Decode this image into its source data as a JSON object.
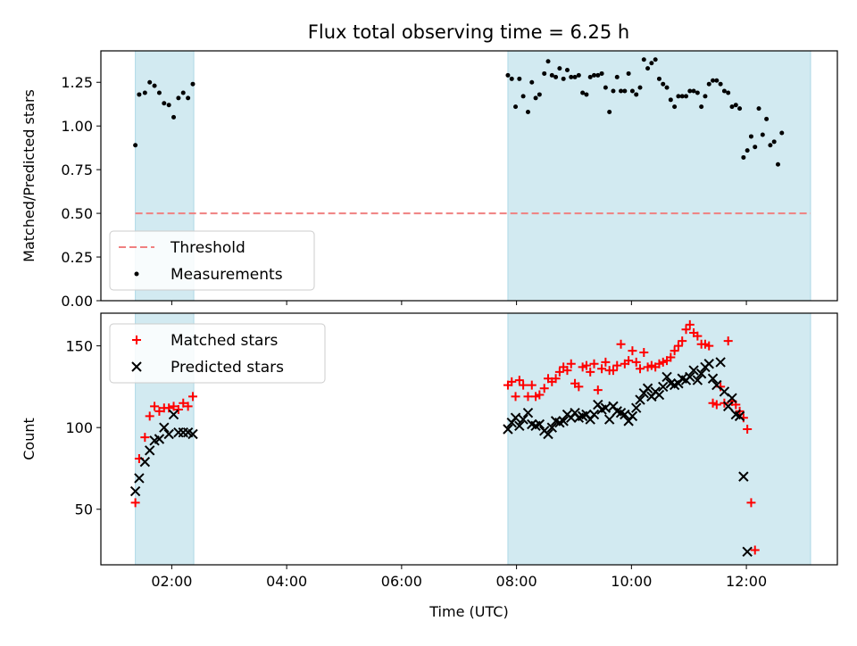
{
  "title": "Flux total observing time = 6.25 h",
  "colors": {
    "shade": "#add8e6",
    "threshold": "#f08080",
    "matched": "#ff0000",
    "predicted": "#000000",
    "measurements": "#000000"
  },
  "chart_data": [
    {
      "type": "scatter",
      "panel": "top",
      "title": "Flux total observing time = 6.25 h",
      "xlabel": "",
      "ylabel": "Matched/Predicted stars",
      "xlim": [
        "00:46",
        "13:35"
      ],
      "ylim": [
        0,
        1.43
      ],
      "yticks": [
        "0.00",
        "0.25",
        "0.50",
        "0.75",
        "1.00",
        "1.25"
      ],
      "legend": {
        "position": "lower-left",
        "entries": [
          "Threshold",
          "Measurements"
        ]
      },
      "shaded_intervals": [
        [
          "01:22",
          "02:23"
        ],
        [
          "07:51",
          "13:07"
        ]
      ],
      "threshold": {
        "name": "Threshold",
        "value": 0.5,
        "x": [
          "01:22",
          "13:07"
        ],
        "style": "dashed"
      },
      "series": [
        {
          "name": "Measurements",
          "points": [
            [
              "01:22",
              0.89
            ],
            [
              "01:26",
              1.18
            ],
            [
              "01:32",
              1.19
            ],
            [
              "01:37",
              1.25
            ],
            [
              "01:42",
              1.23
            ],
            [
              "01:47",
              1.19
            ],
            [
              "01:52",
              1.13
            ],
            [
              "01:57",
              1.12
            ],
            [
              "02:02",
              1.05
            ],
            [
              "02:07",
              1.16
            ],
            [
              "02:12",
              1.19
            ],
            [
              "02:17",
              1.16
            ],
            [
              "02:22",
              1.24
            ],
            [
              "07:51",
              1.29
            ],
            [
              "07:55",
              1.27
            ],
            [
              "07:59",
              1.11
            ],
            [
              "08:03",
              1.27
            ],
            [
              "08:07",
              1.17
            ],
            [
              "08:12",
              1.08
            ],
            [
              "08:16",
              1.25
            ],
            [
              "08:20",
              1.16
            ],
            [
              "08:24",
              1.18
            ],
            [
              "08:29",
              1.3
            ],
            [
              "08:33",
              1.37
            ],
            [
              "08:37",
              1.29
            ],
            [
              "08:41",
              1.28
            ],
            [
              "08:45",
              1.33
            ],
            [
              "08:49",
              1.27
            ],
            [
              "08:53",
              1.32
            ],
            [
              "08:57",
              1.28
            ],
            [
              "09:01",
              1.28
            ],
            [
              "09:05",
              1.29
            ],
            [
              "09:09",
              1.19
            ],
            [
              "09:13",
              1.18
            ],
            [
              "09:17",
              1.28
            ],
            [
              "09:21",
              1.29
            ],
            [
              "09:25",
              1.29
            ],
            [
              "09:29",
              1.3
            ],
            [
              "09:33",
              1.22
            ],
            [
              "09:37",
              1.08
            ],
            [
              "09:41",
              1.2
            ],
            [
              "09:45",
              1.28
            ],
            [
              "09:49",
              1.2
            ],
            [
              "09:53",
              1.2
            ],
            [
              "09:57",
              1.3
            ],
            [
              "10:01",
              1.2
            ],
            [
              "10:05",
              1.18
            ],
            [
              "10:09",
              1.22
            ],
            [
              "10:13",
              1.38
            ],
            [
              "10:17",
              1.33
            ],
            [
              "10:21",
              1.36
            ],
            [
              "10:25",
              1.38
            ],
            [
              "10:29",
              1.27
            ],
            [
              "10:33",
              1.24
            ],
            [
              "10:37",
              1.22
            ],
            [
              "10:41",
              1.15
            ],
            [
              "10:45",
              1.11
            ],
            [
              "10:49",
              1.17
            ],
            [
              "10:53",
              1.17
            ],
            [
              "10:57",
              1.17
            ],
            [
              "11:01",
              1.2
            ],
            [
              "11:05",
              1.2
            ],
            [
              "11:09",
              1.19
            ],
            [
              "11:13",
              1.11
            ],
            [
              "11:17",
              1.17
            ],
            [
              "11:21",
              1.24
            ],
            [
              "11:25",
              1.26
            ],
            [
              "11:29",
              1.26
            ],
            [
              "11:33",
              1.24
            ],
            [
              "11:37",
              1.2
            ],
            [
              "11:41",
              1.19
            ],
            [
              "11:45",
              1.11
            ],
            [
              "11:49",
              1.12
            ],
            [
              "11:53",
              1.1
            ],
            [
              "11:57",
              0.82
            ],
            [
              "12:01",
              0.86
            ],
            [
              "12:05",
              0.94
            ],
            [
              "12:09",
              0.88
            ],
            [
              "12:13",
              1.1
            ],
            [
              "12:17",
              0.95
            ],
            [
              "12:21",
              1.04
            ],
            [
              "12:25",
              0.89
            ],
            [
              "12:29",
              0.91
            ],
            [
              "12:33",
              0.78
            ],
            [
              "12:37",
              0.96
            ]
          ]
        }
      ]
    },
    {
      "type": "scatter",
      "panel": "bottom",
      "xlabel": "Time (UTC)",
      "ylabel": "Count",
      "xlim": [
        "00:46",
        "13:35"
      ],
      "ylim": [
        16,
        170
      ],
      "xticks": [
        "02:00",
        "04:00",
        "06:00",
        "08:00",
        "10:00",
        "12:00"
      ],
      "yticks": [
        "50",
        "100",
        "150"
      ],
      "legend": {
        "position": "upper-left",
        "entries": [
          "Matched stars",
          "Predicted stars"
        ]
      },
      "shaded_intervals": [
        [
          "01:22",
          "02:23"
        ],
        [
          "07:51",
          "13:07"
        ]
      ],
      "series": [
        {
          "name": "Matched stars",
          "marker": "plus",
          "points": [
            [
              "01:22",
              54
            ],
            [
              "01:26",
              81
            ],
            [
              "01:32",
              94
            ],
            [
              "01:37",
              107
            ],
            [
              "01:42",
              113
            ],
            [
              "01:47",
              110
            ],
            [
              "01:52",
              112
            ],
            [
              "01:57",
              112
            ],
            [
              "02:02",
              113
            ],
            [
              "02:07",
              111
            ],
            [
              "02:12",
              115
            ],
            [
              "02:17",
              113
            ],
            [
              "02:22",
              119
            ],
            [
              "07:51",
              126
            ],
            [
              "07:55",
              128
            ],
            [
              "07:59",
              119
            ],
            [
              "08:03",
              129
            ],
            [
              "08:07",
              126
            ],
            [
              "08:12",
              119
            ],
            [
              "08:16",
              126
            ],
            [
              "08:20",
              119
            ],
            [
              "08:24",
              120
            ],
            [
              "08:29",
              124
            ],
            [
              "08:33",
              130
            ],
            [
              "08:37",
              128
            ],
            [
              "08:41",
              130
            ],
            [
              "08:45",
              134
            ],
            [
              "08:49",
              137
            ],
            [
              "08:53",
              135
            ],
            [
              "08:57",
              139
            ],
            [
              "09:01",
              127
            ],
            [
              "09:05",
              125
            ],
            [
              "09:09",
              137
            ],
            [
              "09:13",
              138
            ],
            [
              "09:17",
              134
            ],
            [
              "09:21",
              139
            ],
            [
              "09:25",
              123
            ],
            [
              "09:29",
              136
            ],
            [
              "09:33",
              140
            ],
            [
              "09:37",
              135
            ],
            [
              "09:41",
              135
            ],
            [
              "09:45",
              138
            ],
            [
              "09:49",
              151
            ],
            [
              "09:53",
              139
            ],
            [
              "09:57",
              141
            ],
            [
              "10:01",
              147
            ],
            [
              "10:05",
              140
            ],
            [
              "10:09",
              136
            ],
            [
              "10:13",
              146
            ],
            [
              "10:17",
              137
            ],
            [
              "10:21",
              138
            ],
            [
              "10:25",
              137
            ],
            [
              "10:29",
              139
            ],
            [
              "10:33",
              140
            ],
            [
              "10:37",
              141
            ],
            [
              "10:41",
              143
            ],
            [
              "10:45",
              147
            ],
            [
              "10:49",
              150
            ],
            [
              "10:53",
              153
            ],
            [
              "10:57",
              160
            ],
            [
              "11:01",
              163
            ],
            [
              "11:05",
              158
            ],
            [
              "11:09",
              156
            ],
            [
              "11:13",
              151
            ],
            [
              "11:17",
              151
            ],
            [
              "11:21",
              150
            ],
            [
              "11:25",
              115
            ],
            [
              "11:29",
              114
            ],
            [
              "11:33",
              125
            ],
            [
              "11:37",
              115
            ],
            [
              "11:41",
              153
            ],
            [
              "11:45",
              116
            ],
            [
              "11:49",
              114
            ],
            [
              "11:53",
              110
            ],
            [
              "11:57",
              106
            ],
            [
              "12:01",
              99
            ],
            [
              "12:05",
              54
            ],
            [
              "12:09",
              25
            ]
          ]
        },
        {
          "name": "Predicted stars",
          "marker": "x",
          "points": [
            [
              "01:22",
              61
            ],
            [
              "01:26",
              69
            ],
            [
              "01:32",
              79
            ],
            [
              "01:37",
              86
            ],
            [
              "01:42",
              92
            ],
            [
              "01:47",
              93
            ],
            [
              "01:52",
              100
            ],
            [
              "01:57",
              96
            ],
            [
              "02:02",
              108
            ],
            [
              "02:07",
              97
            ],
            [
              "02:12",
              97
            ],
            [
              "02:17",
              97
            ],
            [
              "02:22",
              96
            ],
            [
              "07:51",
              99
            ],
            [
              "07:55",
              103
            ],
            [
              "07:59",
              106
            ],
            [
              "08:03",
              101
            ],
            [
              "08:07",
              105
            ],
            [
              "08:12",
              109
            ],
            [
              "08:16",
              102
            ],
            [
              "08:20",
              101
            ],
            [
              "08:24",
              102
            ],
            [
              "08:29",
              98
            ],
            [
              "08:33",
              96
            ],
            [
              "08:37",
              100
            ],
            [
              "08:41",
              104
            ],
            [
              "08:45",
              103
            ],
            [
              "08:49",
              104
            ],
            [
              "08:53",
              108
            ],
            [
              "08:57",
              106
            ],
            [
              "09:01",
              109
            ],
            [
              "09:05",
              106
            ],
            [
              "09:09",
              107
            ],
            [
              "09:13",
              108
            ],
            [
              "09:17",
              105
            ],
            [
              "09:21",
              108
            ],
            [
              "09:25",
              114
            ],
            [
              "09:29",
              111
            ],
            [
              "09:33",
              112
            ],
            [
              "09:37",
              105
            ],
            [
              "09:41",
              113
            ],
            [
              "09:45",
              110
            ],
            [
              "09:49",
              109
            ],
            [
              "09:53",
              108
            ],
            [
              "09:57",
              104
            ],
            [
              "10:01",
              107
            ],
            [
              "10:05",
              112
            ],
            [
              "10:09",
              117
            ],
            [
              "10:13",
              121
            ],
            [
              "10:17",
              124
            ],
            [
              "10:21",
              119
            ],
            [
              "10:25",
              122
            ],
            [
              "10:29",
              120
            ],
            [
              "10:33",
              125
            ],
            [
              "10:37",
              131
            ],
            [
              "10:41",
              127
            ],
            [
              "10:45",
              126
            ],
            [
              "10:49",
              127
            ],
            [
              "10:53",
              130
            ],
            [
              "10:57",
              129
            ],
            [
              "11:01",
              131
            ],
            [
              "11:05",
              135
            ],
            [
              "11:09",
              129
            ],
            [
              "11:13",
              133
            ],
            [
              "11:17",
              137
            ],
            [
              "11:21",
              139
            ],
            [
              "11:25",
              130
            ],
            [
              "11:29",
              126
            ],
            [
              "11:33",
              140
            ],
            [
              "11:37",
              122
            ],
            [
              "11:41",
              113
            ],
            [
              "11:45",
              118
            ],
            [
              "11:49",
              108
            ],
            [
              "11:53",
              107
            ],
            [
              "11:57",
              70
            ],
            [
              "12:01",
              24
            ]
          ]
        }
      ]
    }
  ]
}
